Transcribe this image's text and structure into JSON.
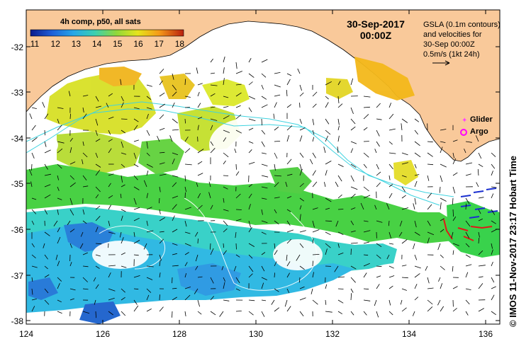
{
  "map": {
    "date": "30-Sep-2017",
    "time": "00:00Z",
    "colorbar_title": "4h comp, p50, all sats",
    "colorbar_ticks": [
      "11",
      "12",
      "13",
      "14",
      "15",
      "16",
      "17",
      "18"
    ],
    "legend_lines": [
      "GSLA (0.1m contours)",
      "and velocities for",
      "30-Sep 00:00Z",
      "0.5m/s (1kt 24h)"
    ],
    "glider_label": "Glider",
    "argo_label": "Argo",
    "credit": "© IMOS 11-Nov-2017 23:17 Hobart Time",
    "y_ticks": [
      "-32",
      "-33",
      "-34",
      "-35",
      "-36",
      "-37",
      "-38"
    ],
    "x_ticks": [
      "124",
      "126",
      "128",
      "130",
      "132",
      "134",
      "136"
    ],
    "colors": {
      "land": "#f9c99a",
      "current": "#3fd3e0",
      "glider": "#ff44ff",
      "argo": "#ff00ff"
    }
  }
}
